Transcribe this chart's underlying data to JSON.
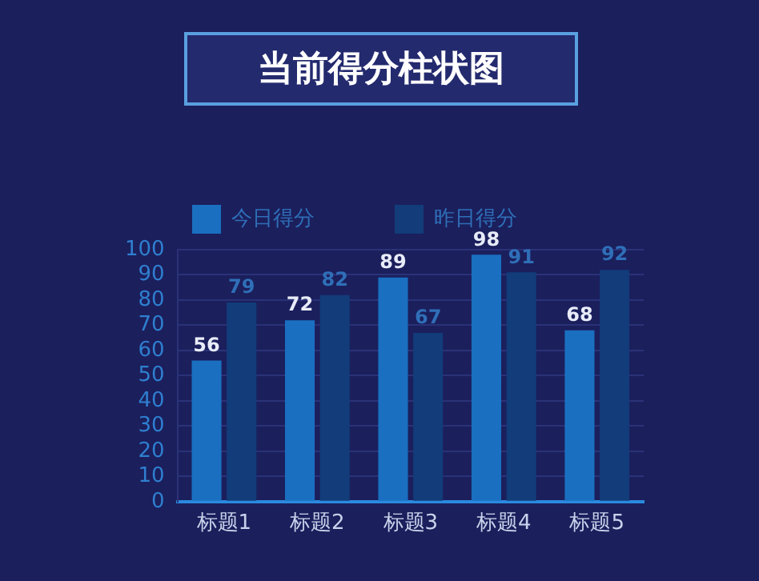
{
  "chart_data": {
    "type": "bar",
    "title": "当前得分柱状图",
    "categories": [
      "标题1",
      "标题2",
      "标题3",
      "标题4",
      "标题5"
    ],
    "series": [
      {
        "name": "今日得分",
        "color": "#1a6fc0",
        "values": [
          56,
          72,
          89,
          98,
          68
        ]
      },
      {
        "name": "昨日得分",
        "color": "#123c7a",
        "values": [
          79,
          82,
          67,
          91,
          92
        ]
      }
    ],
    "ylim": [
      0,
      100
    ],
    "yticks": [
      0,
      10,
      20,
      30,
      40,
      50,
      60,
      70,
      80,
      90,
      100
    ],
    "grid": "y",
    "legend": "top",
    "data_labels": true
  }
}
